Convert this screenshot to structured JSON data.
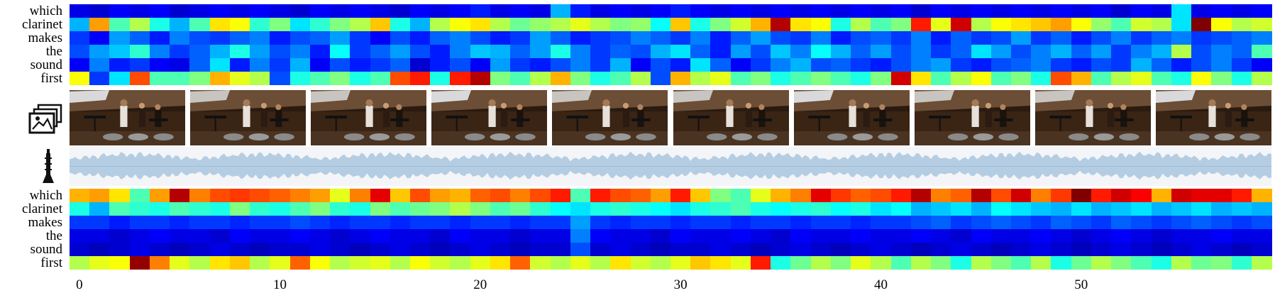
{
  "question_words": [
    "which",
    "clarinet",
    "makes",
    "the",
    "sound",
    "first"
  ],
  "x_ticks": [
    "0",
    "10",
    "20",
    "30",
    "40",
    "50"
  ],
  "icons": {
    "frames": "image-stack-icon",
    "audio": "clarinet-icon"
  },
  "colormap": "jet",
  "chart_data": [
    {
      "type": "heatmap",
      "title": "",
      "rows": [
        "which",
        "clarinet",
        "makes",
        "the",
        "sound",
        "first"
      ],
      "columns": 60,
      "x_tick_labels": [
        "0",
        "10",
        "20",
        "30",
        "40",
        "50"
      ],
      "values": [
        [
          0.1,
          0.08,
          0.12,
          0.1,
          0.12,
          0.08,
          0.1,
          0.12,
          0.1,
          0.12,
          0.1,
          0.08,
          0.12,
          0.1,
          0.12,
          0.1,
          0.08,
          0.12,
          0.1,
          0.12,
          0.15,
          0.1,
          0.12,
          0.1,
          0.3,
          0.15,
          0.1,
          0.12,
          0.1,
          0.12,
          0.15,
          0.12,
          0.1,
          0.12,
          0.1,
          0.12,
          0.1,
          0.12,
          0.1,
          0.12,
          0.1,
          0.12,
          0.08,
          0.12,
          0.1,
          0.12,
          0.1,
          0.12,
          0.1,
          0.12,
          0.1,
          0.12,
          0.08,
          0.12,
          0.1,
          0.35,
          0.1,
          0.12,
          0.1,
          0.12
        ],
        [
          0.3,
          0.72,
          0.45,
          0.55,
          0.4,
          0.3,
          0.45,
          0.65,
          0.62,
          0.42,
          0.5,
          0.35,
          0.42,
          0.5,
          0.55,
          0.68,
          0.4,
          0.3,
          0.55,
          0.62,
          0.65,
          0.55,
          0.48,
          0.52,
          0.55,
          0.6,
          0.55,
          0.5,
          0.52,
          0.38,
          0.68,
          0.4,
          0.5,
          0.58,
          0.7,
          0.95,
          0.65,
          0.62,
          0.4,
          0.55,
          0.45,
          0.5,
          0.85,
          0.6,
          0.92,
          0.55,
          0.62,
          0.65,
          0.68,
          0.72,
          0.62,
          0.52,
          0.45,
          0.58,
          0.55,
          0.35,
          1.0,
          0.62,
          0.55,
          0.58
        ],
        [
          0.18,
          0.12,
          0.28,
          0.22,
          0.15,
          0.25,
          0.2,
          0.18,
          0.22,
          0.25,
          0.15,
          0.2,
          0.22,
          0.28,
          0.18,
          0.12,
          0.2,
          0.15,
          0.22,
          0.25,
          0.2,
          0.15,
          0.18,
          0.28,
          0.22,
          0.15,
          0.18,
          0.2,
          0.25,
          0.22,
          0.18,
          0.25,
          0.15,
          0.22,
          0.28,
          0.2,
          0.18,
          0.25,
          0.15,
          0.2,
          0.22,
          0.18,
          0.25,
          0.15,
          0.22,
          0.18,
          0.2,
          0.28,
          0.18,
          0.22,
          0.15,
          0.2,
          0.25,
          0.18,
          0.22,
          0.25,
          0.18,
          0.2,
          0.22,
          0.25
        ],
        [
          0.2,
          0.28,
          0.32,
          0.42,
          0.25,
          0.18,
          0.22,
          0.3,
          0.4,
          0.28,
          0.2,
          0.25,
          0.15,
          0.38,
          0.18,
          0.22,
          0.28,
          0.2,
          0.15,
          0.25,
          0.32,
          0.3,
          0.22,
          0.28,
          0.4,
          0.25,
          0.18,
          0.22,
          0.2,
          0.3,
          0.35,
          0.22,
          0.15,
          0.28,
          0.2,
          0.32,
          0.25,
          0.38,
          0.3,
          0.22,
          0.28,
          0.2,
          0.25,
          0.18,
          0.22,
          0.35,
          0.28,
          0.2,
          0.25,
          0.3,
          0.22,
          0.28,
          0.18,
          0.25,
          0.3,
          0.55,
          0.2,
          0.25,
          0.22,
          0.45
        ],
        [
          0.12,
          0.25,
          0.15,
          0.18,
          0.12,
          0.1,
          0.22,
          0.35,
          0.15,
          0.25,
          0.18,
          0.3,
          0.12,
          0.2,
          0.15,
          0.18,
          0.22,
          0.08,
          0.15,
          0.2,
          0.12,
          0.28,
          0.18,
          0.15,
          0.2,
          0.25,
          0.18,
          0.3,
          0.12,
          0.2,
          0.15,
          0.35,
          0.22,
          0.12,
          0.18,
          0.25,
          0.3,
          0.2,
          0.22,
          0.18,
          0.15,
          0.2,
          0.25,
          0.28,
          0.18,
          0.15,
          0.2,
          0.22,
          0.25,
          0.18,
          0.15,
          0.2,
          0.18,
          0.3,
          0.22,
          0.15,
          0.2,
          0.25,
          0.18,
          0.12
        ],
        [
          0.62,
          0.18,
          0.35,
          0.8,
          0.45,
          0.45,
          0.5,
          0.7,
          0.6,
          0.55,
          0.2,
          0.4,
          0.45,
          0.5,
          0.4,
          0.45,
          0.8,
          0.85,
          0.4,
          0.85,
          0.95,
          0.5,
          0.45,
          0.55,
          0.7,
          0.5,
          0.4,
          0.45,
          0.55,
          0.2,
          0.7,
          0.55,
          0.6,
          0.45,
          0.5,
          0.4,
          0.45,
          0.5,
          0.45,
          0.4,
          0.5,
          0.92,
          0.65,
          0.45,
          0.55,
          0.62,
          0.45,
          0.5,
          0.4,
          0.8,
          0.7,
          0.45,
          0.55,
          0.6,
          0.45,
          0.4,
          0.62,
          0.5,
          0.4,
          0.55
        ]
      ]
    },
    {
      "type": "heatmap",
      "title": "",
      "rows": [
        "which",
        "clarinet",
        "makes",
        "the",
        "sound",
        "first"
      ],
      "columns": 60,
      "x_tick_labels": [
        "0",
        "10",
        "20",
        "30",
        "40",
        "50"
      ],
      "values": [
        [
          0.7,
          0.72,
          0.65,
          0.45,
          0.72,
          0.95,
          0.75,
          0.8,
          0.82,
          0.8,
          0.78,
          0.75,
          0.72,
          0.6,
          0.75,
          0.9,
          0.68,
          0.8,
          0.72,
          0.7,
          0.78,
          0.8,
          0.75,
          0.8,
          0.85,
          0.45,
          0.85,
          0.8,
          0.78,
          0.72,
          0.85,
          0.68,
          0.5,
          0.45,
          0.6,
          0.7,
          0.75,
          0.9,
          0.82,
          0.78,
          0.8,
          0.85,
          0.95,
          0.75,
          0.78,
          0.95,
          0.8,
          0.92,
          0.75,
          0.82,
          1.0,
          0.85,
          0.92,
          0.88,
          0.7,
          0.92,
          0.9,
          0.9,
          0.85,
          0.7
        ],
        [
          0.4,
          0.3,
          0.45,
          0.42,
          0.4,
          0.45,
          0.42,
          0.4,
          0.5,
          0.42,
          0.4,
          0.45,
          0.5,
          0.42,
          0.4,
          0.5,
          0.45,
          0.48,
          0.5,
          0.55,
          0.5,
          0.45,
          0.48,
          0.42,
          0.38,
          0.35,
          0.4,
          0.42,
          0.4,
          0.38,
          0.35,
          0.4,
          0.42,
          0.45,
          0.4,
          0.38,
          0.4,
          0.42,
          0.38,
          0.4,
          0.35,
          0.38,
          0.3,
          0.32,
          0.35,
          0.3,
          0.38,
          0.35,
          0.32,
          0.3,
          0.35,
          0.3,
          0.32,
          0.35,
          0.3,
          0.32,
          0.35,
          0.3,
          0.32,
          0.3
        ],
        [
          0.18,
          0.18,
          0.15,
          0.18,
          0.18,
          0.16,
          0.18,
          0.18,
          0.16,
          0.18,
          0.18,
          0.2,
          0.18,
          0.16,
          0.18,
          0.18,
          0.16,
          0.18,
          0.18,
          0.16,
          0.18,
          0.18,
          0.16,
          0.18,
          0.18,
          0.28,
          0.18,
          0.16,
          0.18,
          0.18,
          0.16,
          0.18,
          0.18,
          0.16,
          0.18,
          0.18,
          0.16,
          0.18,
          0.18,
          0.16,
          0.18,
          0.18,
          0.2,
          0.22,
          0.18,
          0.2,
          0.22,
          0.2,
          0.18,
          0.22,
          0.2,
          0.18,
          0.22,
          0.2,
          0.18,
          0.2,
          0.22,
          0.2,
          0.18,
          0.2
        ],
        [
          0.1,
          0.1,
          0.08,
          0.1,
          0.12,
          0.1,
          0.1,
          0.08,
          0.12,
          0.1,
          0.1,
          0.12,
          0.1,
          0.08,
          0.1,
          0.12,
          0.1,
          0.1,
          0.08,
          0.12,
          0.1,
          0.1,
          0.08,
          0.1,
          0.1,
          0.25,
          0.12,
          0.1,
          0.1,
          0.08,
          0.12,
          0.1,
          0.1,
          0.12,
          0.1,
          0.08,
          0.12,
          0.1,
          0.1,
          0.12,
          0.1,
          0.1,
          0.12,
          0.1,
          0.08,
          0.12,
          0.1,
          0.1,
          0.12,
          0.1,
          0.08,
          0.1,
          0.12,
          0.1,
          0.08,
          0.1,
          0.1,
          0.12,
          0.1,
          0.1
        ],
        [
          0.08,
          0.06,
          0.08,
          0.1,
          0.08,
          0.06,
          0.08,
          0.1,
          0.08,
          0.06,
          0.08,
          0.08,
          0.1,
          0.08,
          0.06,
          0.08,
          0.1,
          0.08,
          0.06,
          0.08,
          0.1,
          0.08,
          0.06,
          0.08,
          0.08,
          0.2,
          0.08,
          0.1,
          0.08,
          0.06,
          0.08,
          0.08,
          0.1,
          0.08,
          0.06,
          0.08,
          0.1,
          0.08,
          0.06,
          0.08,
          0.1,
          0.08,
          0.06,
          0.08,
          0.1,
          0.08,
          0.06,
          0.08,
          0.1,
          0.08,
          0.06,
          0.08,
          0.1,
          0.08,
          0.06,
          0.08,
          0.1,
          0.08,
          0.06,
          0.08
        ],
        [
          0.55,
          0.6,
          0.62,
          0.98,
          0.75,
          0.6,
          0.55,
          0.65,
          0.68,
          0.55,
          0.6,
          0.78,
          0.62,
          0.55,
          0.58,
          0.6,
          0.55,
          0.62,
          0.58,
          0.55,
          0.6,
          0.65,
          0.78,
          0.58,
          0.55,
          0.6,
          0.55,
          0.65,
          0.58,
          0.55,
          0.6,
          0.68,
          0.65,
          0.6,
          0.85,
          0.4,
          0.48,
          0.55,
          0.5,
          0.6,
          0.55,
          0.45,
          0.55,
          0.5,
          0.4,
          0.55,
          0.5,
          0.45,
          0.55,
          0.4,
          0.48,
          0.55,
          0.5,
          0.45,
          0.4,
          0.55,
          0.48,
          0.5,
          0.42,
          0.55
        ]
      ]
    }
  ]
}
